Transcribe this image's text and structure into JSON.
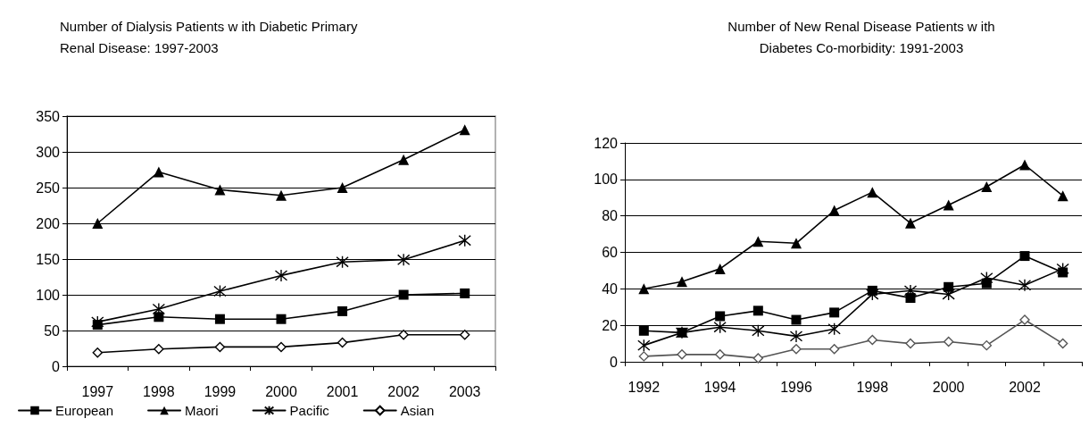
{
  "chart_data": [
    {
      "type": "line",
      "title": "Number of Dialysis Patients w ith Diabetic Primary\nRenal Disease: 1997-2003",
      "categories": [
        "1997",
        "1998",
        "1999",
        "2000",
        "2001",
        "2002",
        "2003"
      ],
      "ylim": [
        0,
        350
      ],
      "yticks": [
        0,
        50,
        100,
        150,
        200,
        250,
        300,
        350
      ],
      "grid": "y",
      "legend": "bottom",
      "series": [
        {
          "name": "European",
          "color": "#000000",
          "marker": "square",
          "values": [
            58,
            69,
            66,
            66,
            77,
            100,
            102
          ]
        },
        {
          "name": "Maori",
          "color": "#000000",
          "marker": "triangle",
          "values": [
            200,
            272,
            247,
            239,
            250,
            289,
            331
          ]
        },
        {
          "name": "Pacific",
          "color": "#000000",
          "marker": "cross",
          "values": [
            62,
            80,
            105,
            127,
            146,
            149,
            176
          ]
        },
        {
          "name": "Asian",
          "color": "#000000",
          "marker": "diamond",
          "values": [
            19,
            24,
            27,
            27,
            33,
            44,
            44
          ]
        }
      ]
    },
    {
      "type": "line",
      "title": "Number of New Renal Disease Patients w ith\nDiabetes Co-morbidity: 1991-2003",
      "categories": [
        "1992",
        null,
        "1994",
        null,
        "1996",
        null,
        "1998",
        null,
        "2000",
        null,
        "2002",
        null
      ],
      "ylim": [
        0,
        120
      ],
      "yticks": [
        0,
        20,
        40,
        60,
        80,
        100,
        120
      ],
      "grid": "y",
      "series": [
        {
          "color": "#000000",
          "marker": "square",
          "values": [
            17,
            16,
            25,
            28,
            23,
            27,
            39,
            35,
            41,
            43,
            58,
            49
          ]
        },
        {
          "color": "#000000",
          "marker": "triangle",
          "values": [
            40,
            44,
            51,
            66,
            65,
            83,
            93,
            76,
            86,
            96,
            108,
            91
          ]
        },
        {
          "color": "#000000",
          "marker": "cross",
          "values": [
            9,
            16,
            19,
            17,
            14,
            18,
            37,
            39,
            37,
            46,
            42,
            51
          ]
        },
        {
          "color": "#555555",
          "marker": "diamond",
          "values": [
            3,
            4,
            4,
            2,
            7,
            7,
            12,
            10,
            11,
            9,
            23,
            10
          ]
        }
      ]
    }
  ]
}
